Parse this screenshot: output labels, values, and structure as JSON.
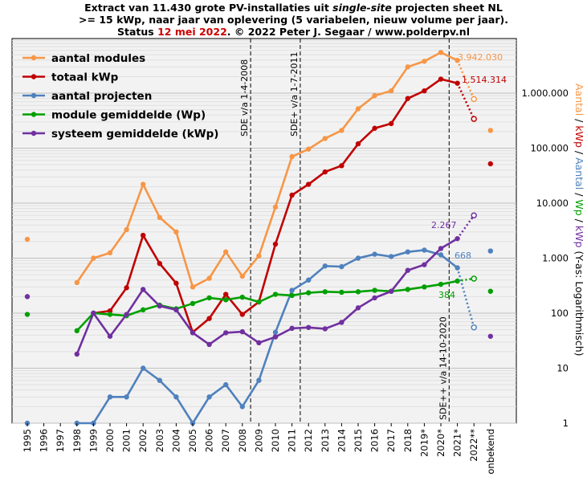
{
  "title": {
    "line1_a": "Extract van 11.430 grote PV-installaties uit ",
    "line1_italic": "single-site",
    "line1_b": " projecten sheet NL",
    "line2": ">= 15 kWp, naar jaar van oplevering (5 variabelen, nieuw volume per jaar).",
    "line3_a": "Status ",
    "line3_date": "12 mei 2022",
    "line3_b": ". © 2022 Peter J. Segaar / www.polderpv.nl"
  },
  "colors": {
    "modules": "#f79646",
    "kwp": "#c00000",
    "projecten": "#4f81bd",
    "module_wp": "#00a000",
    "systeem_kwp": "#7030a0",
    "plot_bg": "#f2f2f2",
    "date_red": "#cc0000"
  },
  "chart_data": {
    "type": "line",
    "yscale": "log",
    "ylim": [
      1,
      10000000
    ],
    "categories": [
      "1995",
      "1996",
      "1997",
      "1998",
      "1999",
      "2000",
      "2001",
      "2002",
      "2003",
      "2004",
      "2005",
      "2006",
      "2007",
      "2008",
      "2009",
      "2010",
      "2011",
      "2012",
      "2013",
      "2014",
      "2015",
      "2016",
      "2017",
      "2018",
      "2019*",
      "2020*",
      "2021*",
      "2022**",
      "onbekend"
    ],
    "ytick_labels": [
      "1",
      "10",
      "100",
      "1.000",
      "10.000",
      "100.000",
      "1.000.000"
    ],
    "ytick_values": [
      1,
      10,
      100,
      1000,
      10000,
      100000,
      1000000
    ],
    "ylabel_parts": [
      {
        "text": "Aantal",
        "color": "#f79646"
      },
      {
        "text": " / ",
        "color": "#000000"
      },
      {
        "text": "kWp",
        "color": "#c00000"
      },
      {
        "text": " / ",
        "color": "#000000"
      },
      {
        "text": "Aantal",
        "color": "#4f81bd"
      },
      {
        "text": " / ",
        "color": "#000000"
      },
      {
        "text": "Wp",
        "color": "#00a000"
      },
      {
        "text": " / ",
        "color": "#000000"
      },
      {
        "text": "kWp",
        "color": "#7030a0"
      },
      {
        "text": " (Y-as: Logarithmisch)",
        "color": "#000000"
      }
    ],
    "legend_position": "top-left",
    "series": [
      {
        "key": "modules",
        "name": "aantal modules",
        "color": "#f79646",
        "values": [
          2200,
          null,
          null,
          360,
          1000,
          1250,
          3300,
          22000,
          5500,
          3000,
          300,
          430,
          1300,
          470,
          1100,
          8500,
          70000,
          96000,
          150000,
          210000,
          520000,
          900000,
          1100000,
          3000000,
          3800000,
          5500000,
          3942030,
          780000,
          210000
        ],
        "end_label": "3.942.030"
      },
      {
        "key": "kwp",
        "name": "totaal kWp",
        "color": "#c00000",
        "values": [
          null,
          null,
          null,
          null,
          100,
          110,
          290,
          2600,
          800,
          350,
          45,
          80,
          220,
          95,
          160,
          1800,
          14000,
          22000,
          37000,
          48000,
          120000,
          230000,
          280000,
          800000,
          1100000,
          1800000,
          1514314,
          340000,
          52000
        ],
        "end_label": "1.514.314"
      },
      {
        "key": "projecten",
        "name": "aantal projecten",
        "color": "#4f81bd",
        "values": [
          1,
          null,
          null,
          1,
          1,
          3,
          3,
          10,
          6,
          3,
          1,
          3,
          5,
          2,
          6,
          45,
          260,
          400,
          720,
          700,
          1000,
          1180,
          1070,
          1300,
          1400,
          1150,
          668,
          55,
          1350
        ],
        "end_label": "668"
      },
      {
        "key": "module_wp",
        "name": "module gemiddelde (Wp)",
        "color": "#00a000",
        "values": [
          95,
          null,
          null,
          48,
          100,
          95,
          90,
          115,
          140,
          120,
          150,
          190,
          175,
          195,
          160,
          220,
          210,
          235,
          245,
          240,
          245,
          260,
          250,
          270,
          300,
          335,
          384,
          425,
          250
        ],
        "end_label": "384"
      },
      {
        "key": "systeem_kwp",
        "name": "systeem gemiddelde (kWp)",
        "color": "#7030a0",
        "values": [
          200,
          null,
          null,
          18,
          100,
          38,
          95,
          270,
          135,
          115,
          44,
          27,
          44,
          46,
          29,
          37,
          53,
          55,
          52,
          68,
          125,
          190,
          250,
          600,
          760,
          1500,
          2267,
          6000,
          38
        ],
        "end_label": "2.267"
      }
    ],
    "provisional_from_index": 26,
    "vlines": [
      {
        "after": "2008",
        "label": "SDE v/a 1-4-2008"
      },
      {
        "after": "2011",
        "label": "SDE+ v/a 1-7-2011"
      },
      {
        "after": "2020*",
        "label": "SDE++ v/a 14-10-2020"
      }
    ]
  }
}
